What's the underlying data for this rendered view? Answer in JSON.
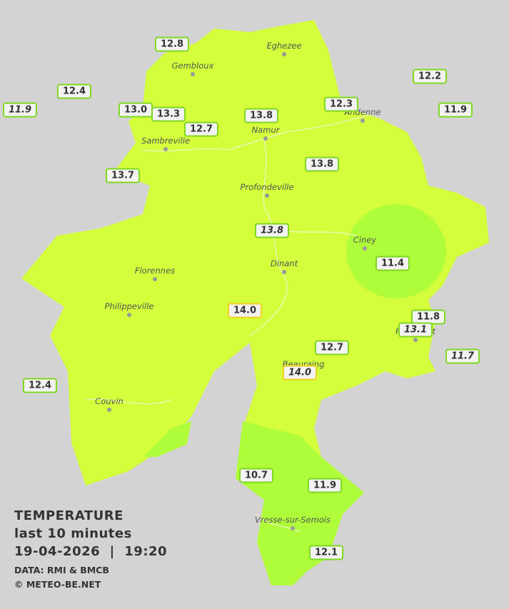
{
  "legend": {
    "title": "TEMPERATURE",
    "period": "last 10 minutes",
    "datetime": "19-04-2026  |  19:20",
    "source": "DATA: RMI & BMCB",
    "credit": "© METEO-BE.NET"
  },
  "places": [
    "Eghezee",
    "Gembloux",
    "Andenne",
    "Namur",
    "Sambreville",
    "Profondeville",
    "Ciney",
    "Dinant",
    "Florennes",
    "Philippeville",
    "Rochefort",
    "Beauraing",
    "Couvin",
    "Vresse-sur-Semois"
  ],
  "stations": [
    "12.8",
    "12.4",
    "11.9",
    "13.0",
    "13.3",
    "12.7",
    "13.8",
    "12.3",
    "12.2",
    "11.9",
    "13.7",
    "13.8",
    "13.8",
    "11.4",
    "14.0",
    "11.8",
    "13.1",
    "12.7",
    "11.7",
    "14.0",
    "12.4",
    "10.7",
    "11.9",
    "12.1"
  ]
}
